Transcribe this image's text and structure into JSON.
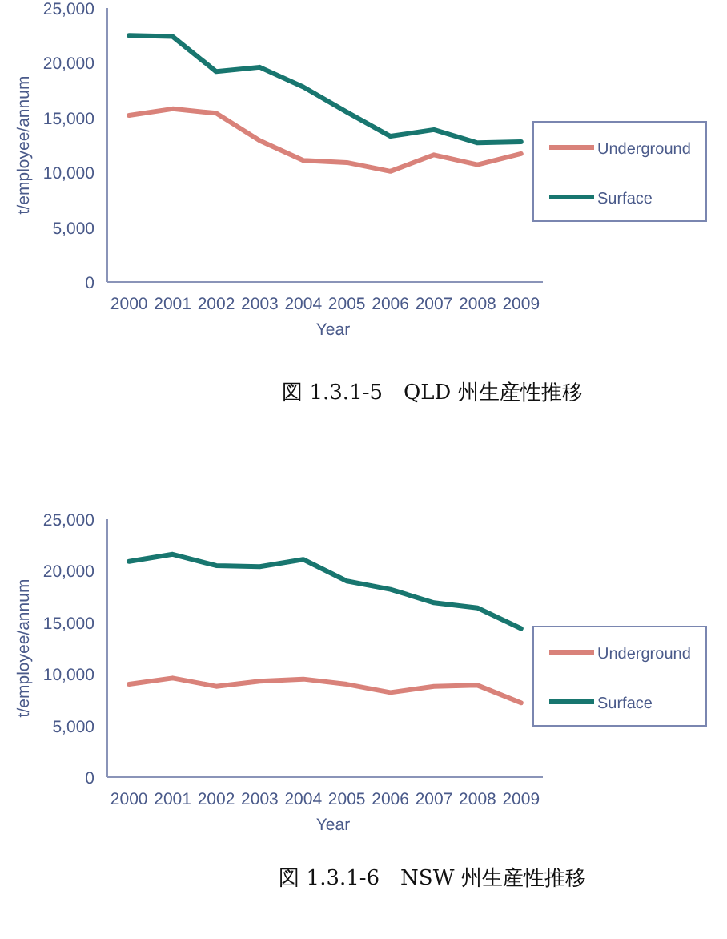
{
  "chart_data": [
    {
      "type": "line",
      "title": "図 1.3.1-5　QLD 州生産性推移",
      "xlabel": "Year",
      "ylabel": "t/employee/annum",
      "categories": [
        "2000",
        "2001",
        "2002",
        "2003",
        "2004",
        "2005",
        "2006",
        "2007",
        "2008",
        "2009"
      ],
      "series": [
        {
          "name": "Underground",
          "color": "#d9827a",
          "values": [
            15200,
            15800,
            15400,
            12900,
            11100,
            10900,
            10100,
            11600,
            10700,
            11700
          ]
        },
        {
          "name": "Surface",
          "color": "#18766f",
          "values": [
            22500,
            22400,
            19200,
            19600,
            17800,
            15500,
            13300,
            13900,
            12700,
            12800
          ]
        }
      ],
      "ylim": [
        0,
        25000
      ],
      "yticks": [
        {
          "value": 0,
          "label": "0"
        },
        {
          "value": 5000,
          "label": "5,000"
        },
        {
          "value": 10000,
          "label": "10,000"
        },
        {
          "value": 15000,
          "label": "15,000"
        },
        {
          "value": 20000,
          "label": "20,000"
        },
        {
          "value": 25000,
          "label": "25,000"
        }
      ],
      "legend": "right",
      "grid": false
    },
    {
      "type": "line",
      "title": "図 1.3.1-6　NSW 州生産性推移",
      "xlabel": "Year",
      "ylabel": "t/employee/annum",
      "categories": [
        "2000",
        "2001",
        "2002",
        "2003",
        "2004",
        "2005",
        "2006",
        "2007",
        "2008",
        "2009"
      ],
      "series": [
        {
          "name": "Underground",
          "color": "#d9827a",
          "values": [
            9000,
            9600,
            8800,
            9300,
            9500,
            9000,
            8200,
            8800,
            8900,
            7200
          ]
        },
        {
          "name": "Surface",
          "color": "#18766f",
          "values": [
            20900,
            21600,
            20500,
            20400,
            21100,
            19000,
            18200,
            16900,
            16400,
            14400
          ]
        }
      ],
      "ylim": [
        0,
        25000
      ],
      "yticks": [
        {
          "value": 0,
          "label": "0"
        },
        {
          "value": 5000,
          "label": "5,000"
        },
        {
          "value": 10000,
          "label": "10,000"
        },
        {
          "value": 15000,
          "label": "15,000"
        },
        {
          "value": 20000,
          "label": "20,000"
        },
        {
          "value": 25000,
          "label": "25,000"
        }
      ],
      "legend": "right",
      "grid": false
    }
  ]
}
